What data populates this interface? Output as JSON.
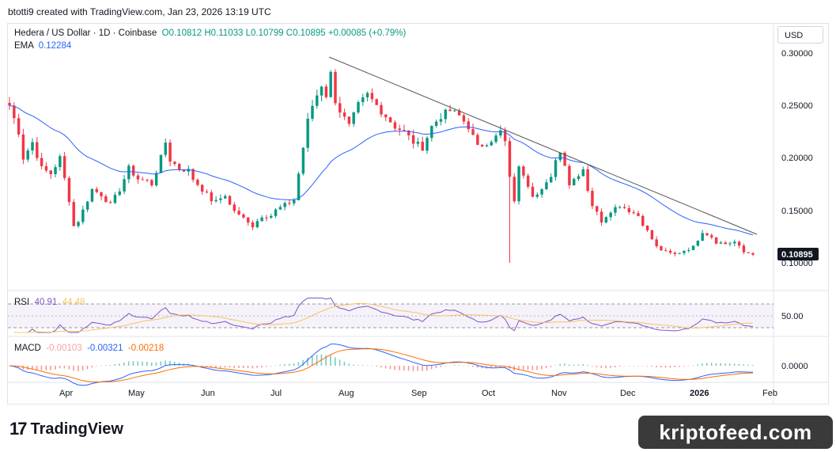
{
  "credit": "btotti9 created with TradingView.com, Jan 23, 2026 13:19 UTC",
  "header": {
    "pair": "Hedera / US Dollar · 1D · Coinbase",
    "open": "O0.10812",
    "high": "H0.11033",
    "low": "L0.10799",
    "close": "C0.10895",
    "change": "+0.00085 (+0.79%)",
    "ema_label": "EMA",
    "ema_value": "0.12284"
  },
  "rsi_header": {
    "label": "RSI",
    "v1": "40.91",
    "v2": "44.48"
  },
  "macd_header": {
    "label": "MACD",
    "v1": "-0.00103",
    "v2": "-0.00321",
    "v3": "-0.00218"
  },
  "currency_button": "USD",
  "last_price_tag": "0.10895",
  "logo": {
    "mark": "17",
    "text": "TradingView"
  },
  "watermark": "kriptofeed.com",
  "colors": {
    "up": "#089981",
    "down": "#f23645",
    "ema": "#2962ff",
    "rsi": "#7e57c2",
    "rsi_ma": "#f7c55f",
    "macd": "#2962ff",
    "signal": "#ff6d00",
    "trend": "#555555"
  },
  "chart_data": {
    "type": "candlestick",
    "x_labels": [
      "Apr",
      "May",
      "Jun",
      "Jul",
      "Aug",
      "Sep",
      "Oct",
      "Nov",
      "Dec",
      "2026",
      "Feb"
    ],
    "price_ticks": [
      "0.30000",
      "0.25000",
      "0.20000",
      "0.15000",
      "0.10000"
    ],
    "price_range": [
      0.09,
      0.31
    ],
    "rsi_ticks": [
      "50.00"
    ],
    "rsi_levels": [
      70,
      50,
      30
    ],
    "macd_ticks": [
      "0.0000"
    ],
    "price_path": [
      [
        0,
        0.25
      ],
      [
        2,
        0.225
      ],
      [
        3,
        0.2
      ],
      [
        5,
        0.215
      ],
      [
        7,
        0.19
      ],
      [
        9,
        0.185
      ],
      [
        11,
        0.2
      ],
      [
        13,
        0.16
      ],
      [
        14,
        0.135
      ],
      [
        15,
        0.14
      ],
      [
        17,
        0.16
      ],
      [
        18,
        0.17
      ],
      [
        20,
        0.165
      ],
      [
        22,
        0.155
      ],
      [
        24,
        0.17
      ],
      [
        26,
        0.19
      ],
      [
        27,
        0.185
      ],
      [
        28,
        0.18
      ],
      [
        30,
        0.178
      ],
      [
        31,
        0.175
      ],
      [
        33,
        0.2
      ],
      [
        34,
        0.215
      ],
      [
        35,
        0.198
      ],
      [
        37,
        0.19
      ],
      [
        39,
        0.188
      ],
      [
        40,
        0.18
      ],
      [
        42,
        0.17
      ],
      [
        44,
        0.16
      ],
      [
        45,
        0.158
      ],
      [
        47,
        0.165
      ],
      [
        48,
        0.155
      ],
      [
        50,
        0.145
      ],
      [
        52,
        0.14
      ],
      [
        53,
        0.135
      ],
      [
        55,
        0.145
      ],
      [
        57,
        0.145
      ],
      [
        58,
        0.15
      ],
      [
        60,
        0.155
      ],
      [
        62,
        0.16
      ],
      [
        64,
        0.21
      ],
      [
        65,
        0.235
      ],
      [
        66,
        0.25
      ],
      [
        68,
        0.27
      ],
      [
        69,
        0.26
      ],
      [
        70,
        0.28
      ],
      [
        71,
        0.255
      ],
      [
        72,
        0.245
      ],
      [
        74,
        0.23
      ],
      [
        76,
        0.25
      ],
      [
        78,
        0.26
      ],
      [
        80,
        0.25
      ],
      [
        82,
        0.24
      ],
      [
        84,
        0.23
      ],
      [
        86,
        0.225
      ],
      [
        88,
        0.215
      ],
      [
        90,
        0.21
      ],
      [
        92,
        0.23
      ],
      [
        94,
        0.24
      ],
      [
        96,
        0.245
      ],
      [
        98,
        0.24
      ],
      [
        100,
        0.23
      ],
      [
        102,
        0.21
      ],
      [
        104,
        0.215
      ],
      [
        106,
        0.22
      ],
      [
        107,
        0.225
      ],
      [
        108,
        0.215
      ],
      [
        109,
        0.18
      ],
      [
        110,
        0.16
      ],
      [
        111,
        0.19
      ],
      [
        112,
        0.185
      ],
      [
        113,
        0.175
      ],
      [
        114,
        0.165
      ],
      [
        116,
        0.17
      ],
      [
        118,
        0.18
      ],
      [
        119,
        0.2
      ],
      [
        120,
        0.205
      ],
      [
        121,
        0.195
      ],
      [
        122,
        0.175
      ],
      [
        124,
        0.185
      ],
      [
        125,
        0.19
      ],
      [
        126,
        0.17
      ],
      [
        127,
        0.155
      ],
      [
        129,
        0.14
      ],
      [
        131,
        0.15
      ],
      [
        133,
        0.155
      ],
      [
        135,
        0.15
      ],
      [
        137,
        0.145
      ],
      [
        139,
        0.13
      ],
      [
        141,
        0.115
      ],
      [
        143,
        0.11
      ],
      [
        145,
        0.108
      ],
      [
        147,
        0.112
      ],
      [
        149,
        0.115
      ],
      [
        151,
        0.13
      ],
      [
        153,
        0.125
      ],
      [
        154,
        0.12
      ],
      [
        156,
        0.118
      ],
      [
        158,
        0.12
      ],
      [
        160,
        0.11
      ],
      [
        162,
        0.109
      ]
    ]
  }
}
